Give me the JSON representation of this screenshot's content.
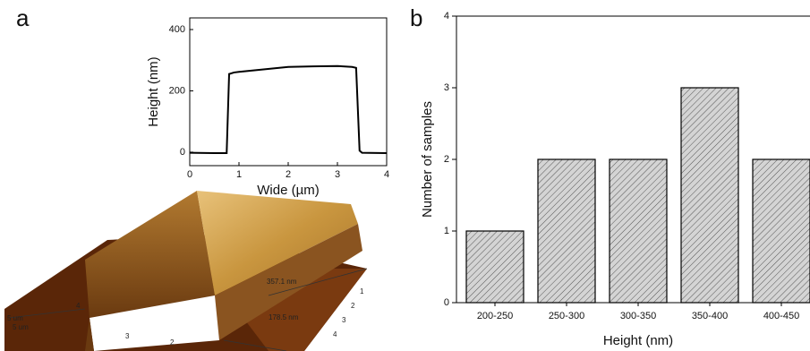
{
  "panels": [
    {
      "label": "a"
    },
    {
      "label": "b"
    }
  ],
  "afm_image": {
    "axis_labels": [
      "5 um",
      "5 um"
    ],
    "scale_labels": [
      "357.1 nm",
      "178.5 nm"
    ],
    "left_ticks": [
      "4",
      "3",
      "2"
    ],
    "right_ticks": [
      "1",
      "2",
      "3",
      "4"
    ]
  },
  "chart_data": [
    {
      "type": "line",
      "xlabel": "Wide (µm)",
      "ylabel": "Height (nm)",
      "x": [
        0,
        0.5,
        0.75,
        0.8,
        0.9,
        1.0,
        1.5,
        2.0,
        2.5,
        3.0,
        3.3,
        3.38,
        3.45,
        3.5,
        4.0
      ],
      "values": [
        -2,
        -3,
        -3,
        255,
        260,
        262,
        270,
        278,
        280,
        281,
        278,
        275,
        5,
        -2,
        -3
      ],
      "color": "#000000",
      "xlim": [
        0,
        4
      ],
      "xticks": [
        0,
        1,
        2,
        3,
        4
      ],
      "ylim": [
        -44,
        438
      ],
      "yticks": [
        0,
        200,
        400
      ]
    },
    {
      "type": "bar",
      "xlabel": "Height (nm)",
      "ylabel": "Number of samples",
      "categories": [
        "200-250",
        "250-300",
        "300-350",
        "350-400",
        "400-450"
      ],
      "values": [
        1,
        2,
        2,
        3,
        2
      ],
      "color": "#d4d4d4",
      "ylim": [
        0,
        4
      ],
      "yticks": [
        0,
        1,
        2,
        3,
        4
      ]
    }
  ]
}
